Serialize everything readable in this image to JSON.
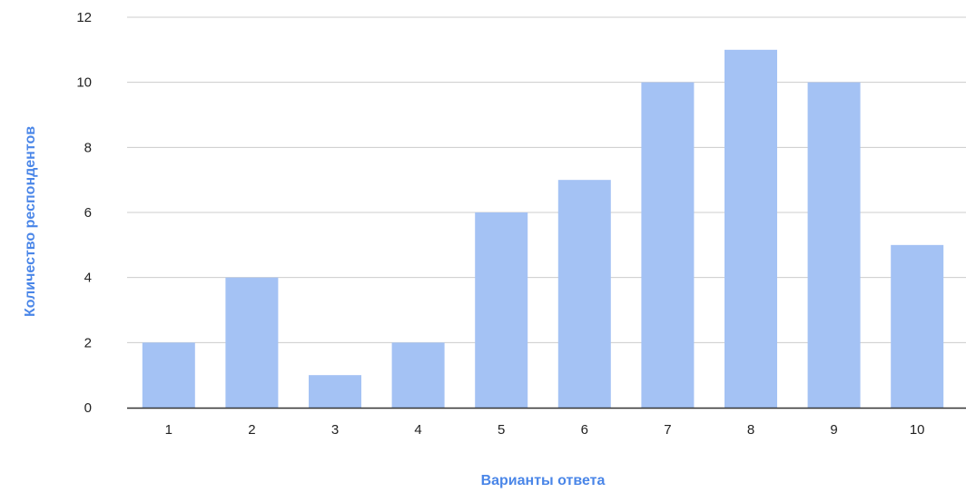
{
  "chart_data": {
    "type": "bar",
    "title": "",
    "xlabel": "Варианты ответа",
    "ylabel": "Количество респондентов",
    "categories": [
      "1",
      "2",
      "3",
      "4",
      "5",
      "6",
      "7",
      "8",
      "9",
      "10"
    ],
    "series": [
      {
        "values": [
          2,
          4,
          1,
          2,
          6,
          7,
          10,
          11,
          10,
          5
        ]
      }
    ],
    "ylim": [
      0,
      12
    ],
    "yticks": [
      "0",
      "2",
      "4",
      "6",
      "8",
      "10",
      "12"
    ],
    "grid": true,
    "legend": "none",
    "colors": {
      "bar": "#a4c2f4",
      "axis_title": "#4a86e8",
      "grid": "#cccccc",
      "baseline": "#333333"
    }
  }
}
